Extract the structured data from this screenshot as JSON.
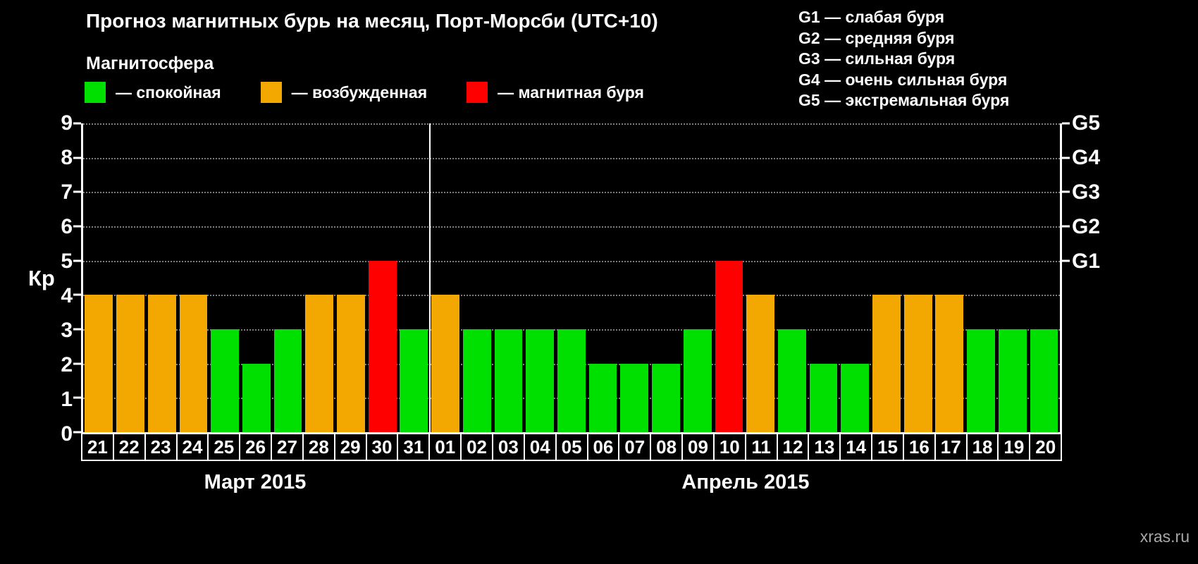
{
  "header": {
    "title": "Прогноз магнитных бурь на месяц, Порт-Морсби (UTC+10)"
  },
  "legend": {
    "heading": "Магнитосфера",
    "items": [
      {
        "status": "quiet",
        "label": "— спокойная",
        "color": "#00e000"
      },
      {
        "status": "excited",
        "label": "— возбужденная",
        "color": "#f2a800"
      },
      {
        "status": "storm",
        "label": "— магнитная буря",
        "color": "#ff0000"
      }
    ]
  },
  "g_legend": {
    "lines": [
      "G1 — слабая буря",
      "G2 — средняя буря",
      "G3 — сильная буря",
      "G4 — очень сильная буря",
      "G5 — экстремальная буря"
    ]
  },
  "watermark": "xras.ru",
  "chart_data": {
    "type": "bar",
    "title": "Прогноз магнитных бурь на месяц, Порт-Морсби (UTC+10)",
    "ylabel": "Кр",
    "ylim": [
      0,
      9
    ],
    "yticks": [
      0,
      1,
      2,
      3,
      4,
      5,
      6,
      7,
      8,
      9
    ],
    "gridline_levels": [
      1,
      2,
      3,
      4,
      5,
      6,
      7,
      8,
      9
    ],
    "grid": true,
    "legend_position": "top",
    "right_axis": [
      {
        "label": "G5",
        "level": 9
      },
      {
        "label": "G4",
        "level": 8
      },
      {
        "label": "G3",
        "level": 7
      },
      {
        "label": "G2",
        "level": 6
      },
      {
        "label": "G1",
        "level": 5
      }
    ],
    "colors": {
      "quiet": "#00e000",
      "excited": "#f2a800",
      "storm": "#ff0000"
    },
    "months": [
      {
        "label": "Март 2015",
        "days": [
          {
            "day": "21",
            "kp": 4
          },
          {
            "day": "22",
            "kp": 4
          },
          {
            "day": "23",
            "kp": 4
          },
          {
            "day": "24",
            "kp": 4
          },
          {
            "day": "25",
            "kp": 3
          },
          {
            "day": "26",
            "kp": 2
          },
          {
            "day": "27",
            "kp": 3
          },
          {
            "day": "28",
            "kp": 4
          },
          {
            "day": "29",
            "kp": 4
          },
          {
            "day": "30",
            "kp": 5
          },
          {
            "day": "31",
            "kp": 3
          }
        ]
      },
      {
        "label": "Апрель 2015",
        "days": [
          {
            "day": "01",
            "kp": 4
          },
          {
            "day": "02",
            "kp": 3
          },
          {
            "day": "03",
            "kp": 3
          },
          {
            "day": "04",
            "kp": 3
          },
          {
            "day": "05",
            "kp": 3
          },
          {
            "day": "06",
            "kp": 2
          },
          {
            "day": "07",
            "kp": 2
          },
          {
            "day": "08",
            "kp": 2
          },
          {
            "day": "09",
            "kp": 3
          },
          {
            "day": "10",
            "kp": 5
          },
          {
            "day": "11",
            "kp": 4
          },
          {
            "day": "12",
            "kp": 3
          },
          {
            "day": "13",
            "kp": 2
          },
          {
            "day": "14",
            "kp": 2
          },
          {
            "day": "15",
            "kp": 4
          },
          {
            "day": "16",
            "kp": 4
          },
          {
            "day": "17",
            "kp": 4
          },
          {
            "day": "18",
            "kp": 3
          },
          {
            "day": "19",
            "kp": 3
          },
          {
            "day": "20",
            "kp": 3
          }
        ]
      }
    ]
  }
}
